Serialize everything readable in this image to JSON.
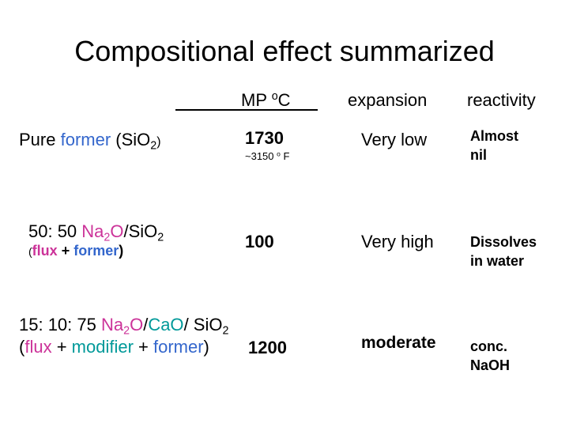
{
  "slide": {
    "title": "Compositional effect summarized",
    "headers": {
      "mp_prefix": "MP ",
      "mp_degree": "o",
      "mp_unit": "C",
      "expansion": "expansion",
      "reactivity": "reactivity"
    },
    "rows": [
      {
        "label_a": "Pure ",
        "label_b": "former",
        "label_c": " (SiO",
        "label_sub": "2",
        "label_d": ")",
        "mp": "1730",
        "mp_note": "~3150",
        "mp_note_deg": "o",
        "mp_note_unit": " F",
        "expansion": "Very low",
        "reactivity_1": "Almost",
        "reactivity_2": "nil"
      },
      {
        "label_a": "50: 50 ",
        "label_b": "Na",
        "label_sub1": "2",
        "label_c": "O",
        "label_d": "/SiO",
        "label_sub2": "2",
        "paren_open": "(",
        "flux": "flux",
        "plus": " + ",
        "former": "former",
        "paren_close": ")",
        "mp": "100",
        "expansion": "Very high",
        "reactivity_1": "Dissolves",
        "reactivity_2": "in water"
      },
      {
        "label_a": "15: 10: 75 ",
        "label_b": "Na",
        "label_sub1": "2",
        "label_c": "O",
        "label_d": "/",
        "label_e": "CaO",
        "label_f": "/ SiO",
        "label_sub2": "2",
        "paren_open": "(",
        "flux": "flux",
        "plus1": " + ",
        "modifier": "modifier",
        "plus2": " + ",
        "former": "former",
        "paren_close": ")",
        "mp": "1200",
        "expansion": "moderate",
        "reactivity_1": "conc.",
        "reactivity_2": "NaOH"
      }
    ]
  }
}
